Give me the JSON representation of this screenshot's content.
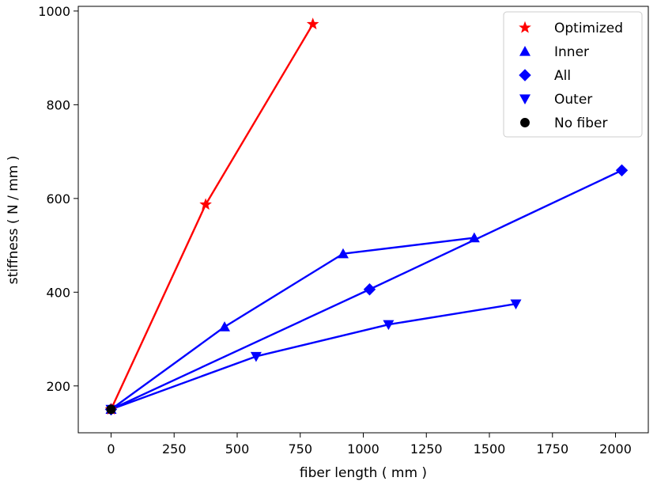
{
  "chart_data": {
    "type": "line",
    "title": "",
    "xlabel": "fiber length ( mm )",
    "ylabel": "stiffness ( N / mm )",
    "xlim": [
      -130,
      2130
    ],
    "ylim": [
      100,
      1010
    ],
    "xticks": [
      0,
      250,
      500,
      750,
      1000,
      1250,
      1500,
      1750,
      2000
    ],
    "xtick_labels": [
      "0",
      "250",
      "500",
      "750",
      "1000",
      "1250",
      "1500",
      "1750",
      "2000"
    ],
    "yticks": [
      200,
      400,
      600,
      800,
      1000
    ],
    "ytick_labels": [
      "200",
      "400",
      "600",
      "800",
      "1000"
    ],
    "grid": false,
    "legend_position": "top-right",
    "series": [
      {
        "name": "Optimized",
        "marker": "star",
        "color": "#ff0000",
        "x": [
          0,
          375,
          800
        ],
        "y": [
          150,
          587,
          972
        ]
      },
      {
        "name": "Inner",
        "marker": "triangle-up",
        "color": "#0000ff",
        "x": [
          0,
          450,
          920,
          1440
        ],
        "y": [
          150,
          326,
          482,
          516
        ]
      },
      {
        "name": "All",
        "marker": "diamond",
        "color": "#0000ff",
        "x": [
          0,
          1025,
          2025
        ],
        "y": [
          150,
          406,
          660
        ]
      },
      {
        "name": "Outer",
        "marker": "triangle-down",
        "color": "#0000ff",
        "x": [
          0,
          575,
          1100,
          1605
        ],
        "y": [
          150,
          263,
          331,
          375
        ]
      },
      {
        "name": "No fiber",
        "marker": "circle",
        "color": "#000000",
        "x": [
          0
        ],
        "y": [
          150
        ]
      }
    ]
  }
}
